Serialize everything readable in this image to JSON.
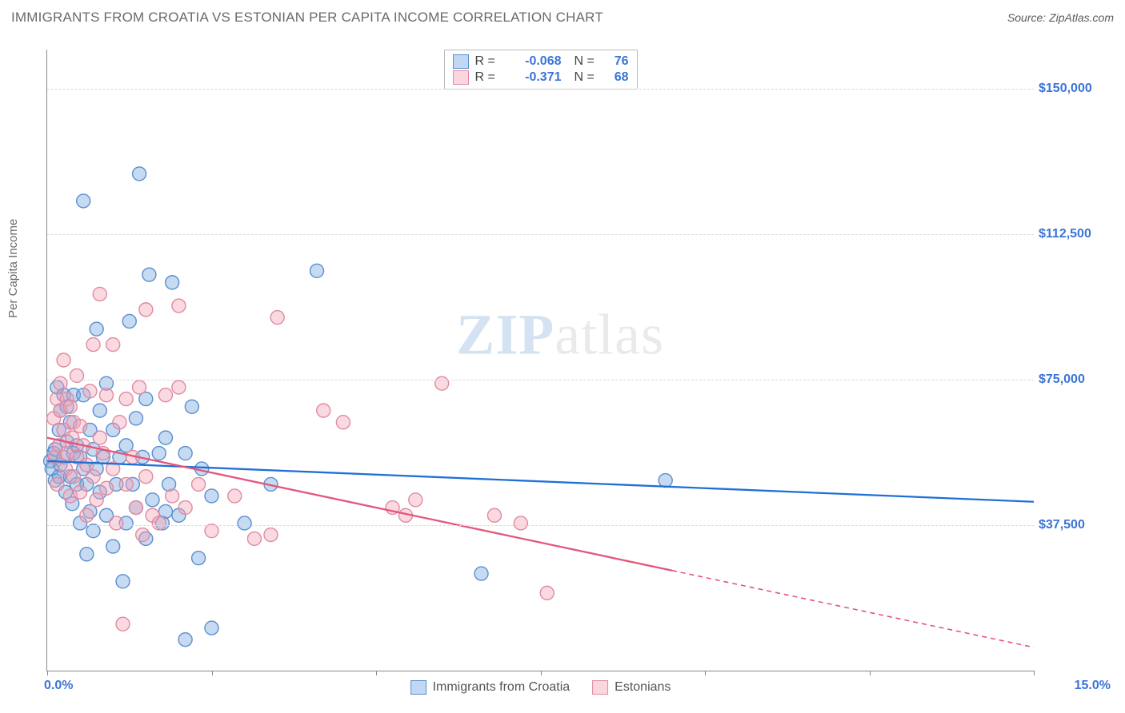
{
  "header": {
    "title": "IMMIGRANTS FROM CROATIA VS ESTONIAN PER CAPITA INCOME CORRELATION CHART",
    "source": "Source: ZipAtlas.com"
  },
  "watermark": {
    "zip": "ZIP",
    "atlas": "atlas"
  },
  "chart": {
    "type": "scatter",
    "ylabel": "Per Capita Income",
    "xlim": [
      0,
      15
    ],
    "ylim": [
      0,
      160000
    ],
    "xticks": [
      {
        "pos": 0,
        "label": "0.0%"
      },
      {
        "pos": 15,
        "label": "15.0%"
      }
    ],
    "xtick_marks_every": 2.5,
    "yticks": [
      {
        "pos": 37500,
        "label": "$37,500"
      },
      {
        "pos": 75000,
        "label": "$75,000"
      },
      {
        "pos": 112500,
        "label": "$112,500"
      },
      {
        "pos": 150000,
        "label": "$150,000"
      }
    ],
    "grid_h": [
      37500,
      75000,
      112500,
      150000
    ],
    "grid_color": "#d9d9d9",
    "background_color": "#ffffff",
    "marker_radius": 8.5,
    "marker_opacity": 0.42,
    "series": [
      {
        "name": "Immigrants from Croatia",
        "fill": "#77a7e0",
        "stroke": "#5b8fcf",
        "line_color": "#1f6fd6",
        "R": "-0.068",
        "N": "76",
        "regression": {
          "y_at_x0": 54000,
          "y_at_x15": 43500,
          "dash_from_x": null
        },
        "points": [
          [
            0.05,
            54000
          ],
          [
            0.07,
            52000
          ],
          [
            0.1,
            56000
          ],
          [
            0.12,
            49000
          ],
          [
            0.12,
            57000
          ],
          [
            0.15,
            73000
          ],
          [
            0.18,
            50000
          ],
          [
            0.18,
            62000
          ],
          [
            0.2,
            53000
          ],
          [
            0.2,
            67000
          ],
          [
            0.25,
            55000
          ],
          [
            0.25,
            71000
          ],
          [
            0.28,
            46000
          ],
          [
            0.3,
            59000
          ],
          [
            0.3,
            68000
          ],
          [
            0.35,
            50000
          ],
          [
            0.35,
            64000
          ],
          [
            0.38,
            43000
          ],
          [
            0.4,
            56000
          ],
          [
            0.4,
            71000
          ],
          [
            0.45,
            48000
          ],
          [
            0.45,
            58000
          ],
          [
            0.5,
            38000
          ],
          [
            0.5,
            55000
          ],
          [
            0.55,
            52000
          ],
          [
            0.55,
            71000
          ],
          [
            0.55,
            121000
          ],
          [
            0.6,
            30000
          ],
          [
            0.6,
            48000
          ],
          [
            0.65,
            41000
          ],
          [
            0.65,
            62000
          ],
          [
            0.7,
            36000
          ],
          [
            0.7,
            57000
          ],
          [
            0.75,
            52000
          ],
          [
            0.75,
            88000
          ],
          [
            0.8,
            46000
          ],
          [
            0.8,
            67000
          ],
          [
            0.85,
            55000
          ],
          [
            0.9,
            40000
          ],
          [
            0.9,
            74000
          ],
          [
            1.0,
            32000
          ],
          [
            1.0,
            62000
          ],
          [
            1.05,
            48000
          ],
          [
            1.1,
            55000
          ],
          [
            1.15,
            23000
          ],
          [
            1.2,
            38000
          ],
          [
            1.2,
            58000
          ],
          [
            1.25,
            90000
          ],
          [
            1.3,
            48000
          ],
          [
            1.35,
            42000
          ],
          [
            1.35,
            65000
          ],
          [
            1.4,
            128000
          ],
          [
            1.45,
            55000
          ],
          [
            1.5,
            34000
          ],
          [
            1.5,
            70000
          ],
          [
            1.55,
            102000
          ],
          [
            1.6,
            44000
          ],
          [
            1.7,
            56000
          ],
          [
            1.75,
            38000
          ],
          [
            1.8,
            60000
          ],
          [
            1.85,
            48000
          ],
          [
            1.9,
            100000
          ],
          [
            2.0,
            40000
          ],
          [
            2.1,
            56000
          ],
          [
            2.1,
            8000
          ],
          [
            2.2,
            68000
          ],
          [
            2.3,
            29000
          ],
          [
            2.35,
            52000
          ],
          [
            2.5,
            45000
          ],
          [
            2.5,
            11000
          ],
          [
            3.0,
            38000
          ],
          [
            3.4,
            48000
          ],
          [
            4.1,
            103000
          ],
          [
            6.6,
            25000
          ],
          [
            9.4,
            49000
          ],
          [
            1.8,
            41000
          ]
        ]
      },
      {
        "name": "Estonians",
        "fill": "#f4a4b8",
        "stroke": "#e08aa2",
        "line_color": "#e4557b",
        "R": "-0.371",
        "N": "68",
        "regression": {
          "y_at_x0": 60000,
          "y_at_x15": 6000,
          "dash_from_x": 9.5
        },
        "points": [
          [
            0.1,
            65000
          ],
          [
            0.12,
            55000
          ],
          [
            0.15,
            48000
          ],
          [
            0.15,
            70000
          ],
          [
            0.18,
            58000
          ],
          [
            0.2,
            67000
          ],
          [
            0.2,
            74000
          ],
          [
            0.25,
            62000
          ],
          [
            0.25,
            80000
          ],
          [
            0.28,
            52000
          ],
          [
            0.3,
            56000
          ],
          [
            0.3,
            70000
          ],
          [
            0.35,
            45000
          ],
          [
            0.35,
            68000
          ],
          [
            0.38,
            60000
          ],
          [
            0.4,
            50000
          ],
          [
            0.4,
            64000
          ],
          [
            0.45,
            55000
          ],
          [
            0.45,
            76000
          ],
          [
            0.5,
            46000
          ],
          [
            0.5,
            63000
          ],
          [
            0.55,
            58000
          ],
          [
            0.6,
            40000
          ],
          [
            0.6,
            53000
          ],
          [
            0.65,
            72000
          ],
          [
            0.7,
            50000
          ],
          [
            0.7,
            84000
          ],
          [
            0.75,
            44000
          ],
          [
            0.8,
            60000
          ],
          [
            0.8,
            97000
          ],
          [
            0.85,
            56000
          ],
          [
            0.9,
            47000
          ],
          [
            0.9,
            71000
          ],
          [
            1.0,
            52000
          ],
          [
            1.0,
            84000
          ],
          [
            1.05,
            38000
          ],
          [
            1.1,
            64000
          ],
          [
            1.15,
            12000
          ],
          [
            1.2,
            48000
          ],
          [
            1.2,
            70000
          ],
          [
            1.3,
            55000
          ],
          [
            1.35,
            42000
          ],
          [
            1.4,
            73000
          ],
          [
            1.45,
            35000
          ],
          [
            1.5,
            50000
          ],
          [
            1.5,
            93000
          ],
          [
            1.6,
            40000
          ],
          [
            1.7,
            38000
          ],
          [
            1.8,
            71000
          ],
          [
            1.9,
            45000
          ],
          [
            2.0,
            94000
          ],
          [
            2.0,
            73000
          ],
          [
            2.1,
            42000
          ],
          [
            2.3,
            48000
          ],
          [
            2.5,
            36000
          ],
          [
            2.85,
            45000
          ],
          [
            3.15,
            34000
          ],
          [
            3.4,
            35000
          ],
          [
            3.5,
            91000
          ],
          [
            4.2,
            67000
          ],
          [
            4.5,
            64000
          ],
          [
            5.25,
            42000
          ],
          [
            5.45,
            40000
          ],
          [
            5.6,
            44000
          ],
          [
            6.0,
            74000
          ],
          [
            6.8,
            40000
          ],
          [
            7.2,
            38000
          ],
          [
            7.6,
            20000
          ]
        ]
      }
    ],
    "legend_bottom": [
      {
        "swatch": "blue",
        "label": "Immigrants from Croatia"
      },
      {
        "swatch": "pink",
        "label": "Estonians"
      }
    ]
  }
}
